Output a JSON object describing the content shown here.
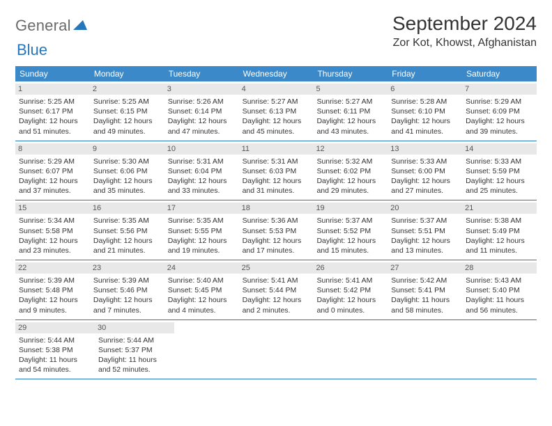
{
  "logo": {
    "text1": "General",
    "text2": "Blue",
    "triangle_color": "#2676bb"
  },
  "title": "September 2024",
  "location": "Zor Kot, Khowst, Afghanistan",
  "colors": {
    "header_bg": "#3b89c9",
    "header_text": "#ffffff",
    "daynum_bg": "#e8e8e8",
    "border": "#2676bb"
  },
  "weekdays": [
    "Sunday",
    "Monday",
    "Tuesday",
    "Wednesday",
    "Thursday",
    "Friday",
    "Saturday"
  ],
  "weeks": [
    [
      {
        "n": "1",
        "sunrise": "5:25 AM",
        "sunset": "6:17 PM",
        "day_h": "12",
        "day_m": "51"
      },
      {
        "n": "2",
        "sunrise": "5:25 AM",
        "sunset": "6:15 PM",
        "day_h": "12",
        "day_m": "49"
      },
      {
        "n": "3",
        "sunrise": "5:26 AM",
        "sunset": "6:14 PM",
        "day_h": "12",
        "day_m": "47"
      },
      {
        "n": "4",
        "sunrise": "5:27 AM",
        "sunset": "6:13 PM",
        "day_h": "12",
        "day_m": "45"
      },
      {
        "n": "5",
        "sunrise": "5:27 AM",
        "sunset": "6:11 PM",
        "day_h": "12",
        "day_m": "43"
      },
      {
        "n": "6",
        "sunrise": "5:28 AM",
        "sunset": "6:10 PM",
        "day_h": "12",
        "day_m": "41"
      },
      {
        "n": "7",
        "sunrise": "5:29 AM",
        "sunset": "6:09 PM",
        "day_h": "12",
        "day_m": "39"
      }
    ],
    [
      {
        "n": "8",
        "sunrise": "5:29 AM",
        "sunset": "6:07 PM",
        "day_h": "12",
        "day_m": "37"
      },
      {
        "n": "9",
        "sunrise": "5:30 AM",
        "sunset": "6:06 PM",
        "day_h": "12",
        "day_m": "35"
      },
      {
        "n": "10",
        "sunrise": "5:31 AM",
        "sunset": "6:04 PM",
        "day_h": "12",
        "day_m": "33"
      },
      {
        "n": "11",
        "sunrise": "5:31 AM",
        "sunset": "6:03 PM",
        "day_h": "12",
        "day_m": "31"
      },
      {
        "n": "12",
        "sunrise": "5:32 AM",
        "sunset": "6:02 PM",
        "day_h": "12",
        "day_m": "29"
      },
      {
        "n": "13",
        "sunrise": "5:33 AM",
        "sunset": "6:00 PM",
        "day_h": "12",
        "day_m": "27"
      },
      {
        "n": "14",
        "sunrise": "5:33 AM",
        "sunset": "5:59 PM",
        "day_h": "12",
        "day_m": "25"
      }
    ],
    [
      {
        "n": "15",
        "sunrise": "5:34 AM",
        "sunset": "5:58 PM",
        "day_h": "12",
        "day_m": "23"
      },
      {
        "n": "16",
        "sunrise": "5:35 AM",
        "sunset": "5:56 PM",
        "day_h": "12",
        "day_m": "21"
      },
      {
        "n": "17",
        "sunrise": "5:35 AM",
        "sunset": "5:55 PM",
        "day_h": "12",
        "day_m": "19"
      },
      {
        "n": "18",
        "sunrise": "5:36 AM",
        "sunset": "5:53 PM",
        "day_h": "12",
        "day_m": "17"
      },
      {
        "n": "19",
        "sunrise": "5:37 AM",
        "sunset": "5:52 PM",
        "day_h": "12",
        "day_m": "15"
      },
      {
        "n": "20",
        "sunrise": "5:37 AM",
        "sunset": "5:51 PM",
        "day_h": "12",
        "day_m": "13"
      },
      {
        "n": "21",
        "sunrise": "5:38 AM",
        "sunset": "5:49 PM",
        "day_h": "12",
        "day_m": "11"
      }
    ],
    [
      {
        "n": "22",
        "sunrise": "5:39 AM",
        "sunset": "5:48 PM",
        "day_h": "12",
        "day_m": "9"
      },
      {
        "n": "23",
        "sunrise": "5:39 AM",
        "sunset": "5:46 PM",
        "day_h": "12",
        "day_m": "7"
      },
      {
        "n": "24",
        "sunrise": "5:40 AM",
        "sunset": "5:45 PM",
        "day_h": "12",
        "day_m": "4"
      },
      {
        "n": "25",
        "sunrise": "5:41 AM",
        "sunset": "5:44 PM",
        "day_h": "12",
        "day_m": "2"
      },
      {
        "n": "26",
        "sunrise": "5:41 AM",
        "sunset": "5:42 PM",
        "day_h": "12",
        "day_m": "0"
      },
      {
        "n": "27",
        "sunrise": "5:42 AM",
        "sunset": "5:41 PM",
        "day_h": "11",
        "day_m": "58"
      },
      {
        "n": "28",
        "sunrise": "5:43 AM",
        "sunset": "5:40 PM",
        "day_h": "11",
        "day_m": "56"
      }
    ],
    [
      {
        "n": "29",
        "sunrise": "5:44 AM",
        "sunset": "5:38 PM",
        "day_h": "11",
        "day_m": "54"
      },
      {
        "n": "30",
        "sunrise": "5:44 AM",
        "sunset": "5:37 PM",
        "day_h": "11",
        "day_m": "52"
      },
      null,
      null,
      null,
      null,
      null
    ]
  ],
  "labels": {
    "sunrise": "Sunrise: ",
    "sunset": "Sunset: ",
    "daylight_pre": "Daylight: ",
    "hours": " hours",
    "and": "and ",
    "minutes": " minutes."
  }
}
